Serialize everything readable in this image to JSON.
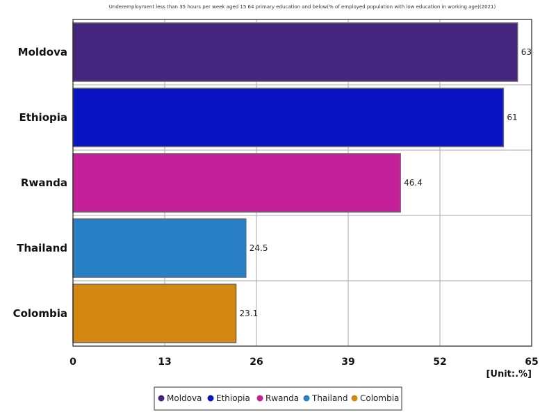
{
  "chart_data": {
    "type": "bar",
    "orientation": "horizontal",
    "title": "Underemployment less than 35 hours per week aged 15 64 primary education and below(% of employed population with low education in working age)(2021)",
    "categories": [
      "Moldova",
      "Ethiopia",
      "Rwanda",
      "Thailand",
      "Colombia"
    ],
    "values": [
      63,
      61,
      46.4,
      24.5,
      23.1
    ],
    "value_labels": [
      "63",
      "61",
      "46.4",
      "24.5",
      "23.1"
    ],
    "colors": [
      "#45267f",
      "#0a14c2",
      "#c4209a",
      "#2a80c4",
      "#d48811"
    ],
    "xlim": [
      0,
      65
    ],
    "xticks": [
      0,
      13,
      26,
      39,
      52,
      65
    ],
    "unit_label": "[Unit:.%]",
    "grid": true,
    "legend": {
      "position": "bottom-center",
      "entries": [
        "Moldova",
        "Ethiopia",
        "Rwanda",
        "Thailand",
        "Colombia"
      ]
    }
  }
}
